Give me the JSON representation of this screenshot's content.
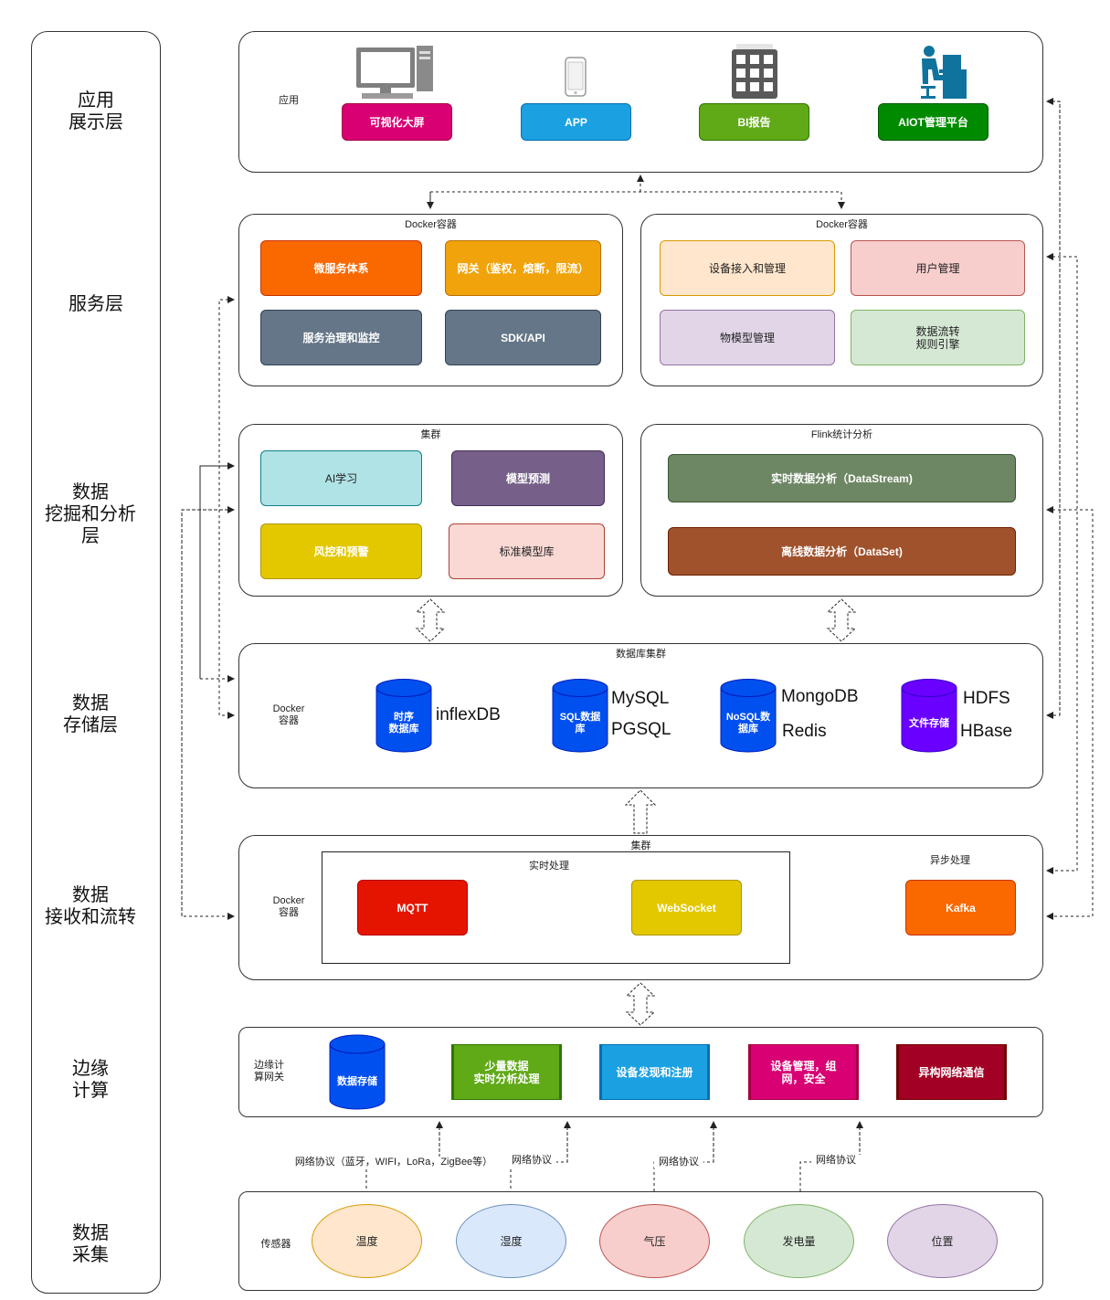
{
  "layers": [
    {
      "label": "应用\n展示层"
    },
    {
      "label": "服务层"
    },
    {
      "label": "数据\n挖掘和分析\n层"
    },
    {
      "label": "数据\n存储层"
    },
    {
      "label": "数据\n接收和流转"
    },
    {
      "label": "边缘\n计算"
    },
    {
      "label": "数据\n采集"
    }
  ],
  "app": {
    "side_label": "应用",
    "items": [
      {
        "label": "可视化大屏",
        "color": "#d80073",
        "icon": "desktop-computer-icon"
      },
      {
        "label": "APP",
        "color": "#1ba1e2",
        "icon": "mobile-phone-icon"
      },
      {
        "label": "BI报告",
        "color": "#60a917",
        "icon": "grid-report-icon"
      },
      {
        "label": "AIOT管理平台",
        "color": "#008a00",
        "icon": "office-worker-icon"
      }
    ]
  },
  "service": {
    "left": {
      "title": "Docker容器",
      "items": [
        "微服务体系",
        "网关（鉴权，熔断，限流）",
        "服务治理和监控",
        "SDK/API"
      ]
    },
    "right": {
      "title": "Docker容器",
      "items": [
        "设备接入和管理",
        "用户管理",
        "物模型管理",
        "数据流转\n规则引擎"
      ]
    }
  },
  "mining": {
    "left": {
      "title": "集群",
      "items": [
        "AI学习",
        "模型预测",
        "风控和预警",
        "标准模型库"
      ]
    },
    "right": {
      "title": "Flink统计分析",
      "items": [
        "实时数据分析（DataStream)",
        "离线数据分析（DataSet)"
      ]
    }
  },
  "storage": {
    "title": "数据库集群",
    "side_label": "Docker\n容器",
    "dbs": [
      {
        "cyl": "时序\n数据库",
        "names": [
          "inflexDB"
        ]
      },
      {
        "cyl": "SQL数据\n库",
        "names": [
          "MySQL",
          "PGSQL"
        ]
      },
      {
        "cyl": "NoSQL数\n据库",
        "names": [
          "MongoDB",
          "Redis"
        ]
      },
      {
        "cyl": "文件存储",
        "names": [
          "HDFS",
          "HBase"
        ]
      }
    ]
  },
  "receive": {
    "title": "集群",
    "side_label": "Docker\n容器",
    "realtime_title": "实时处理",
    "async_title": "异步处理",
    "mqtt": "MQTT",
    "websocket": "WebSocket",
    "kafka": "Kafka"
  },
  "edge": {
    "side_label": "边缘计\n算网关",
    "storage": "数据存储",
    "items": [
      "少量数据\n实时分析处理",
      "设备发现和注册",
      "设备管理，组\n网，安全",
      "异构网络通信"
    ]
  },
  "protocols": [
    "网络协议（蓝牙，WIFI，LoRa，ZigBee等）",
    "网络协议",
    "网络协议",
    "网络协议"
  ],
  "sensors": {
    "side_label": "传感器",
    "items": [
      "温度",
      "湿度",
      "气压",
      "发电量",
      "位置"
    ]
  }
}
